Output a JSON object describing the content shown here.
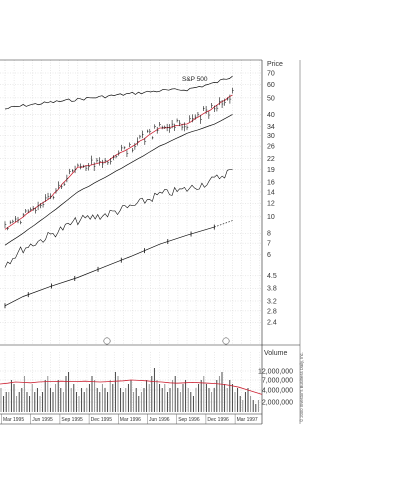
{
  "chart_data": {
    "type": "line",
    "title": "",
    "price_axis": {
      "label": "Price",
      "scale": "log",
      "ticks": [
        "70",
        "60",
        "50",
        "40",
        "34",
        "30",
        "26",
        "22",
        "19",
        "16",
        "14",
        "12",
        "10",
        "8",
        "7",
        "6",
        "4.5",
        "3.8",
        "3.2",
        "2.8",
        "2.4"
      ]
    },
    "volume_axis": {
      "label": "Volume",
      "ticks": [
        "12,000,000",
        "7,000,000",
        "4,000,000",
        "2,000,000"
      ]
    },
    "x_ticks": [
      "Mar 1995",
      "Jun 1995",
      "Sep 1995",
      "Dec 1995",
      "Mar 1996",
      "Jun 1996",
      "Sep 1996",
      "Dec 1996",
      "Mar 1997"
    ],
    "annotations": [
      "S&P 500"
    ],
    "copyright": "© 2000 Investor's Business Daily, Inc.",
    "grid": true,
    "colors": {
      "moving_average": "#cc2233",
      "lines": "#111111",
      "grid": "#bbbbbb"
    },
    "series": [
      {
        "name": "S&P 500",
        "x": [
          "Jan 1995",
          "Mar 1995",
          "Jun 1995",
          "Sep 1995",
          "Dec 1995",
          "Mar 1996",
          "Jun 1996",
          "Sep 1996",
          "Dec 1996",
          "Feb 1997"
        ],
        "values": [
          43,
          45,
          47,
          49,
          51,
          53,
          55,
          56,
          61,
          67
        ]
      },
      {
        "x": [
          "Jan 1995",
          "Mar 1995",
          "Jun 1995",
          "Sep 1995",
          "Dec 1995",
          "Mar 1996",
          "Jun 1996",
          "Sep 1996",
          "Dec 1996",
          "Feb 1997"
        ],
        "values": [
          8.5,
          10,
          13,
          19.5,
          21,
          26,
          33,
          35,
          44,
          52
        ]
      },
      {
        "x": [
          "Jan 1995",
          "Mar 1995",
          "Jun 1995",
          "Sep 1995",
          "Dec 1995",
          "Mar 1996",
          "Jun 1996",
          "Sep 1996",
          "Dec 1996",
          "Feb 1997"
        ],
        "values": [
          6.8,
          8,
          10.5,
          14,
          17,
          21,
          26,
          31,
          35,
          40
        ]
      },
      {
        "x": [
          "Jan 1995",
          "Mar 1995",
          "Jun 1995",
          "Sep 1995",
          "Dec 1995",
          "Mar 1996",
          "Jun 1996",
          "Sep 1996",
          "Dec 1996",
          "Feb 1997"
        ],
        "values": [
          5.3,
          6.5,
          7.8,
          9.5,
          10.3,
          11.5,
          13.5,
          14.5,
          16.5,
          19
        ]
      },
      {
        "x": [
          "Jan 1995",
          "Mar 1995",
          "Jun 1995",
          "Sep 1995",
          "Dec 1995",
          "Mar 1996",
          "Jun 1996",
          "Sep 1996",
          "Dec 1996",
          "Feb 1997"
        ],
        "values": [
          3.0,
          3.4,
          3.9,
          4.4,
          5.1,
          5.9,
          6.9,
          7.8,
          8.7,
          9.5
        ]
      }
    ],
    "volume": [
      6,
      4,
      5,
      5,
      8,
      7,
      4,
      5,
      6,
      9,
      5,
      4,
      7,
      5,
      6,
      4,
      5,
      8,
      9,
      6,
      5,
      7,
      8,
      6,
      5,
      9,
      10,
      6,
      7,
      5,
      4,
      6,
      5,
      6,
      7,
      9,
      8,
      6,
      5,
      7,
      6,
      5,
      8,
      7,
      10,
      9,
      6,
      5,
      6,
      7,
      8,
      5,
      6,
      4,
      5,
      6,
      8,
      7,
      9,
      11,
      8,
      7,
      6,
      7,
      5,
      6,
      8,
      9,
      6,
      5,
      7,
      8,
      6,
      5,
      4,
      6,
      7,
      8,
      9,
      7,
      6,
      5,
      6,
      8,
      9,
      10,
      7,
      6,
      8,
      7,
      5,
      6,
      4,
      3,
      5,
      6,
      4,
      3,
      2,
      3
    ],
    "volume_ma": [
      7,
      7.2,
      7.5,
      7.4,
      7.3,
      7.5,
      7.6,
      7.6,
      7.7,
      7.6,
      7.6,
      7.7,
      7.6,
      7.5,
      7.6,
      7.7,
      7.8,
      8.0,
      7.9,
      7.8,
      7.6,
      7.5,
      7.3,
      7.2,
      7.3,
      7.4,
      7.3,
      7.2,
      7.1,
      6.9,
      6.6,
      6.2,
      5.6,
      5.0,
      4.4
    ]
  }
}
